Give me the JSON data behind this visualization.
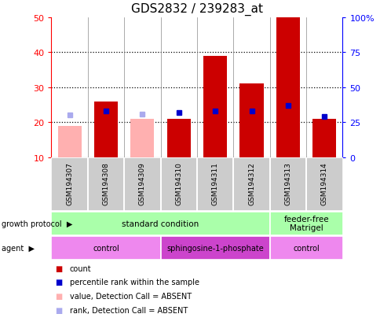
{
  "title": "GDS2832 / 239283_at",
  "samples": [
    "GSM194307",
    "GSM194308",
    "GSM194309",
    "GSM194310",
    "GSM194311",
    "GSM194312",
    "GSM194313",
    "GSM194314"
  ],
  "count_values": [
    null,
    26,
    null,
    21,
    39,
    31,
    50,
    21
  ],
  "count_absent_values": [
    19,
    null,
    21,
    null,
    null,
    null,
    null,
    null
  ],
  "rank_values": [
    null,
    33,
    null,
    32,
    33,
    33,
    37,
    29
  ],
  "rank_absent_values": [
    30,
    null,
    31,
    null,
    null,
    null,
    null,
    null
  ],
  "ylim_left": [
    10,
    50
  ],
  "ylim_right": [
    0,
    100
  ],
  "yticks_left": [
    10,
    20,
    30,
    40,
    50
  ],
  "yticks_right": [
    0,
    25,
    50,
    75,
    100
  ],
  "ytick_labels_left": [
    "10",
    "20",
    "30",
    "40",
    "50"
  ],
  "ytick_labels_right": [
    "0",
    "25",
    "50",
    "75",
    "100%"
  ],
  "bar_color": "#cc0000",
  "bar_absent_color": "#ffb0b0",
  "rank_color": "#0000cc",
  "rank_absent_color": "#aaaaee",
  "sample_box_color": "#cccccc",
  "growth_protocol_color": "#aaffaa",
  "agent_color_light": "#ee88ee",
  "agent_color_dark": "#cc44cc",
  "growth_protocol_groups": [
    {
      "label": "standard condition",
      "start": 0,
      "end": 6
    },
    {
      "label": "feeder-free\nMatrigel",
      "start": 6,
      "end": 8
    }
  ],
  "agent_groups": [
    {
      "label": "control",
      "start": 0,
      "end": 3,
      "color": "#ee88ee"
    },
    {
      "label": "sphingosine-1-phosphate",
      "start": 3,
      "end": 6,
      "color": "#cc44cc"
    },
    {
      "label": "control",
      "start": 6,
      "end": 8,
      "color": "#ee88ee"
    }
  ],
  "legend_items": [
    {
      "color": "#cc0000",
      "label": "count"
    },
    {
      "color": "#0000cc",
      "label": "percentile rank within the sample"
    },
    {
      "color": "#ffb0b0",
      "label": "value, Detection Call = ABSENT"
    },
    {
      "color": "#aaaaee",
      "label": "rank, Detection Call = ABSENT"
    }
  ]
}
